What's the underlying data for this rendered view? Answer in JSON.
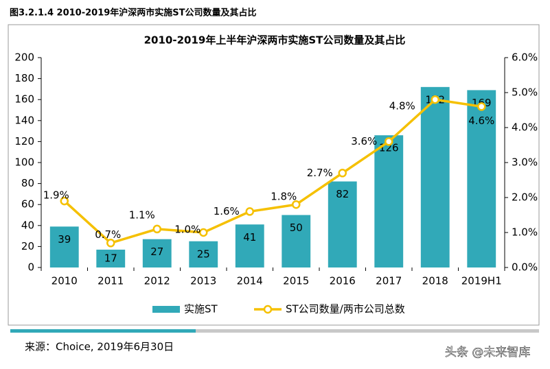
{
  "header": {
    "title": "图3.2.1.4 2010-2019年沪深两市实施ST公司数量及其占比"
  },
  "chart_data": {
    "type": "bar_line",
    "title": "2010-2019年上半年沪深两市实施ST公司数量及其占比",
    "categories": [
      "2010",
      "2011",
      "2012",
      "2013",
      "2014",
      "2015",
      "2016",
      "2017",
      "2018",
      "2019H1"
    ],
    "series": [
      {
        "name": "实施ST",
        "type": "bar",
        "color": "#31a9b8",
        "values": [
          39,
          17,
          27,
          25,
          41,
          50,
          82,
          126,
          172,
          169
        ]
      },
      {
        "name": "ST公司数量/两市公司总数",
        "type": "line",
        "axis": "y2",
        "color": "#f5c000",
        "values": [
          1.9,
          0.7,
          1.1,
          1.0,
          1.6,
          1.8,
          2.7,
          3.6,
          4.8,
          4.6
        ],
        "value_labels": [
          "1.9%",
          "0.7%",
          "1.1%",
          "1.0%",
          "1.6%",
          "1.8%",
          "2.7%",
          "3.6%",
          "4.8%",
          "4.6%"
        ]
      }
    ],
    "ylim": [
      0,
      200
    ],
    "yticks": [
      0,
      20,
      40,
      60,
      80,
      100,
      120,
      140,
      160,
      180,
      200
    ],
    "y2lim": [
      0,
      6
    ],
    "y2ticks": [
      {
        "value": 0,
        "label": "0.0%"
      },
      {
        "value": 1,
        "label": "1.0%"
      },
      {
        "value": 2,
        "label": "2.0%"
      },
      {
        "value": 3,
        "label": "3.0%"
      },
      {
        "value": 4,
        "label": "4.0%"
      },
      {
        "value": 5,
        "label": "5.0%"
      },
      {
        "value": 6,
        "label": "6.0%"
      }
    ],
    "legend": "bottom"
  },
  "source": "来源：Choice, 2019年6月30日",
  "watermark": "头条 @未来智库"
}
